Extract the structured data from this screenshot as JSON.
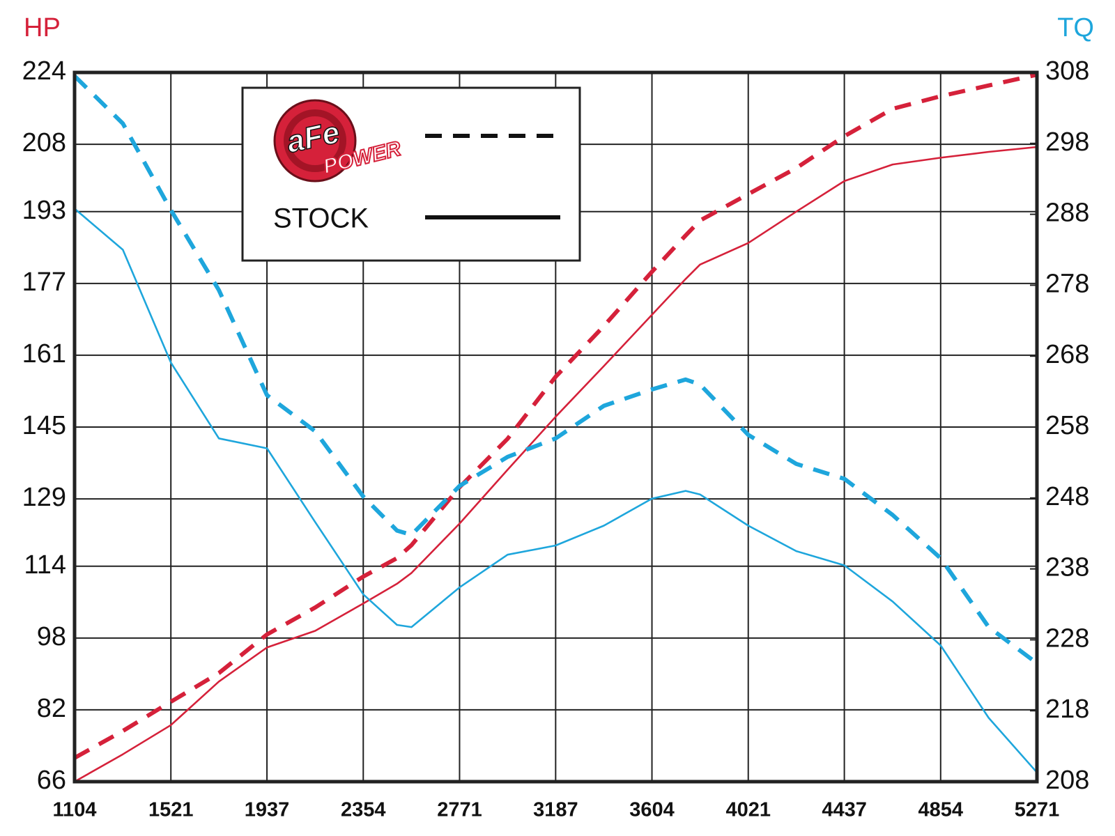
{
  "chart_data": {
    "type": "line",
    "y_label": "HP",
    "y2_label": "TQ",
    "y_label_color": "#d5213a",
    "y2_label_color": "#1ea6dc",
    "x": [
      1104,
      1313,
      1521,
      1729,
      1937,
      2146,
      2354,
      2500,
      2563,
      2771,
      2979,
      3187,
      3396,
      3604,
      3750,
      3812,
      4021,
      4229,
      4437,
      4646,
      4854,
      5062,
      5271
    ],
    "xlim": [
      1104,
      5271
    ],
    "xticks": [
      1104,
      1521,
      1937,
      2354,
      2771,
      3187,
      3604,
      4021,
      4437,
      4854,
      5271
    ],
    "ylim": [
      66,
      224
    ],
    "yticks": [
      66,
      82,
      98,
      114,
      129,
      145,
      161,
      177,
      193,
      208,
      224
    ],
    "y2lim": [
      208,
      308
    ],
    "y2ticks": [
      208,
      218,
      228,
      238,
      248,
      258,
      268,
      278,
      288,
      298,
      308
    ],
    "grid": true,
    "series": [
      {
        "color": "#d5213a",
        "style": "solid",
        "axis": "y",
        "values": [
          66,
          72.1,
          78.6,
          88.3,
          95.9,
          99.6,
          105.7,
          110.1,
          112.5,
          123.5,
          135.5,
          147.3,
          158.6,
          170.0,
          178.0,
          181.2,
          186.0,
          193.0,
          199.8,
          203.5,
          205.0,
          206.3,
          207.4
        ]
      },
      {
        "color": "#d5213a",
        "style": "dashed",
        "axis": "y",
        "values": [
          71.3,
          77.3,
          83.8,
          90.2,
          98.8,
          104.8,
          111.7,
          115.8,
          118.7,
          131.6,
          142.4,
          156.2,
          167.5,
          179.6,
          187.7,
          191.0,
          196.9,
          202.7,
          209.8,
          215.9,
          218.7,
          221.1,
          223.5
        ]
      },
      {
        "color": "#1ea6dc",
        "style": "solid",
        "axis": "y2",
        "values": [
          288.8,
          283.0,
          267.1,
          256.4,
          255.0,
          244.6,
          234.4,
          230.1,
          229.8,
          235.4,
          240.0,
          241.3,
          244.1,
          247.9,
          249.0,
          248.5,
          244.1,
          240.5,
          238.5,
          233.4,
          227.2,
          217.0,
          209.3
        ]
      },
      {
        "color": "#1ea6dc",
        "style": "dashed",
        "axis": "y2",
        "values": [
          307.5,
          300.8,
          288.6,
          277.3,
          262.5,
          257.4,
          248.2,
          243.4,
          242.8,
          249.7,
          253.8,
          256.4,
          261.0,
          263.3,
          264.7,
          264.0,
          256.9,
          252.8,
          250.7,
          245.6,
          239.5,
          229.8,
          224.7
        ]
      }
    ],
    "legend": [
      {
        "logo": [
          "aFe",
          "POWER"
        ],
        "style": "dashed"
      },
      {
        "label": "STOCK",
        "style": "solid"
      }
    ]
  }
}
